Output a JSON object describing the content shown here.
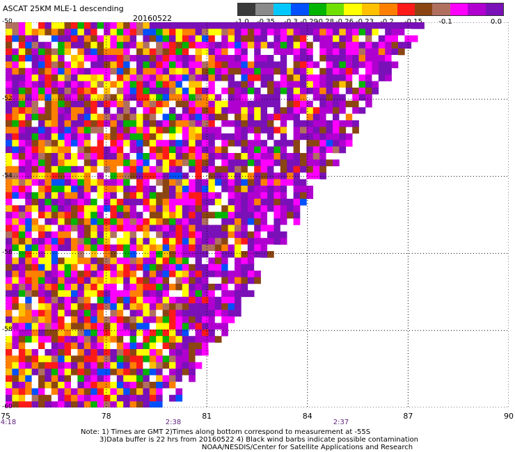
{
  "title": "ASCAT 25KM MLE-1 descending",
  "date": "20160522",
  "color_scale": {
    "labels": [
      "-1.0",
      "-0.35",
      "-0.3",
      "-0.29",
      "-0.28",
      "-0.26",
      "-0.23",
      "-0.2",
      "-0.15",
      "-0.1",
      "0.0"
    ],
    "colors": [
      "#3a3a3a",
      "#8a8a8a",
      "#00c8ff",
      "#0050ff",
      "#00b400",
      "#6fe000",
      "#ffff00",
      "#ffc000",
      "#ff8000",
      "#ff1a1a",
      "#8b4513",
      "#b07060",
      "#ff00ff",
      "#b000d0",
      "#7a10b8"
    ]
  },
  "map": {
    "lon_range": [
      75,
      90
    ],
    "lat_range": [
      -60,
      -50
    ],
    "lon_ticks": [
      "75",
      "78",
      "81",
      "84",
      "87",
      "90"
    ],
    "lat_ticks": [
      "-50",
      "-52",
      "-54",
      "-56",
      "-58",
      "-60"
    ],
    "time_labels": [
      {
        "text": "4:18",
        "lon": 75
      },
      {
        "text": "2:38",
        "lon": 80
      },
      {
        "text": "2:37",
        "lon": 85
      }
    ],
    "grid": "dotted",
    "swath_edge": "diagonal from top (~87E at -50) to bottom (~80E at -60)"
  },
  "notes": [
    "Note: 1) Times are GMT 2)Times along bottom correspond to measurement at -55S",
    "3)Data buffer is 22 hrs from 20160522 4) Black wind barbs indicate possible contamination",
    "NOAA/NESDIS/Center for Satellite Applications and Research"
  ]
}
